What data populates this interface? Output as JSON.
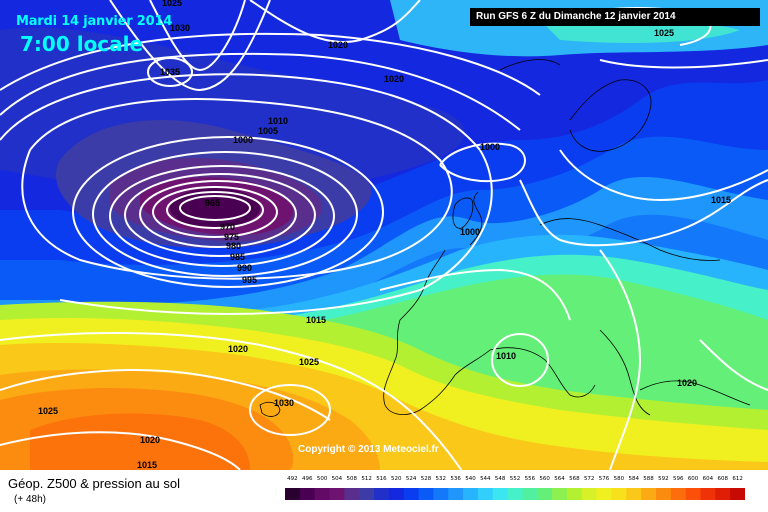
{
  "header": {
    "date": "Mardi 14 janvier 2014",
    "time": "7:00 locale",
    "run": "Run GFS 6 Z du Dimanche 12 janvier 2014"
  },
  "map": {
    "copyright": "Copyright © 2013 Meteociel.fr",
    "isobar_labels": [
      "1025",
      "1030",
      "1020",
      "1035",
      "1020",
      "1010",
      "1005",
      "1000",
      "1000",
      "965",
      "970",
      "975",
      "980",
      "985",
      "990",
      "995",
      "1000",
      "1015",
      "1020",
      "1025",
      "1025",
      "1030",
      "1020",
      "1015",
      "1010",
      "1020",
      "1015",
      "1025"
    ]
  },
  "footer": {
    "product": "Géop. Z500 & pression au sol",
    "lead": "(+ 48h)"
  },
  "legend": {
    "values": [
      "492",
      "496",
      "500",
      "504",
      "508",
      "512",
      "516",
      "520",
      "524",
      "528",
      "532",
      "536",
      "540",
      "544",
      "548",
      "552",
      "556",
      "560",
      "564",
      "568",
      "572",
      "576",
      "580",
      "584",
      "588",
      "592",
      "596",
      "600",
      "604",
      "608",
      "612"
    ],
    "colors": [
      "#2a0030",
      "#4a0052",
      "#620a66",
      "#6e1470",
      "#5a2e8c",
      "#3c3ca8",
      "#2030c8",
      "#1428e0",
      "#0a3cf0",
      "#0a5af8",
      "#1478fa",
      "#1e96fc",
      "#28b4fc",
      "#32cefc",
      "#3ce6f0",
      "#46f0c8",
      "#50f0a0",
      "#64f078",
      "#8cf050",
      "#b4f032",
      "#d8f028",
      "#f0f020",
      "#f8e01c",
      "#fac818",
      "#fcaa14",
      "#fc8c10",
      "#fc6e0c",
      "#fa500a",
      "#f03208",
      "#e01e06",
      "#c80a04"
    ]
  }
}
